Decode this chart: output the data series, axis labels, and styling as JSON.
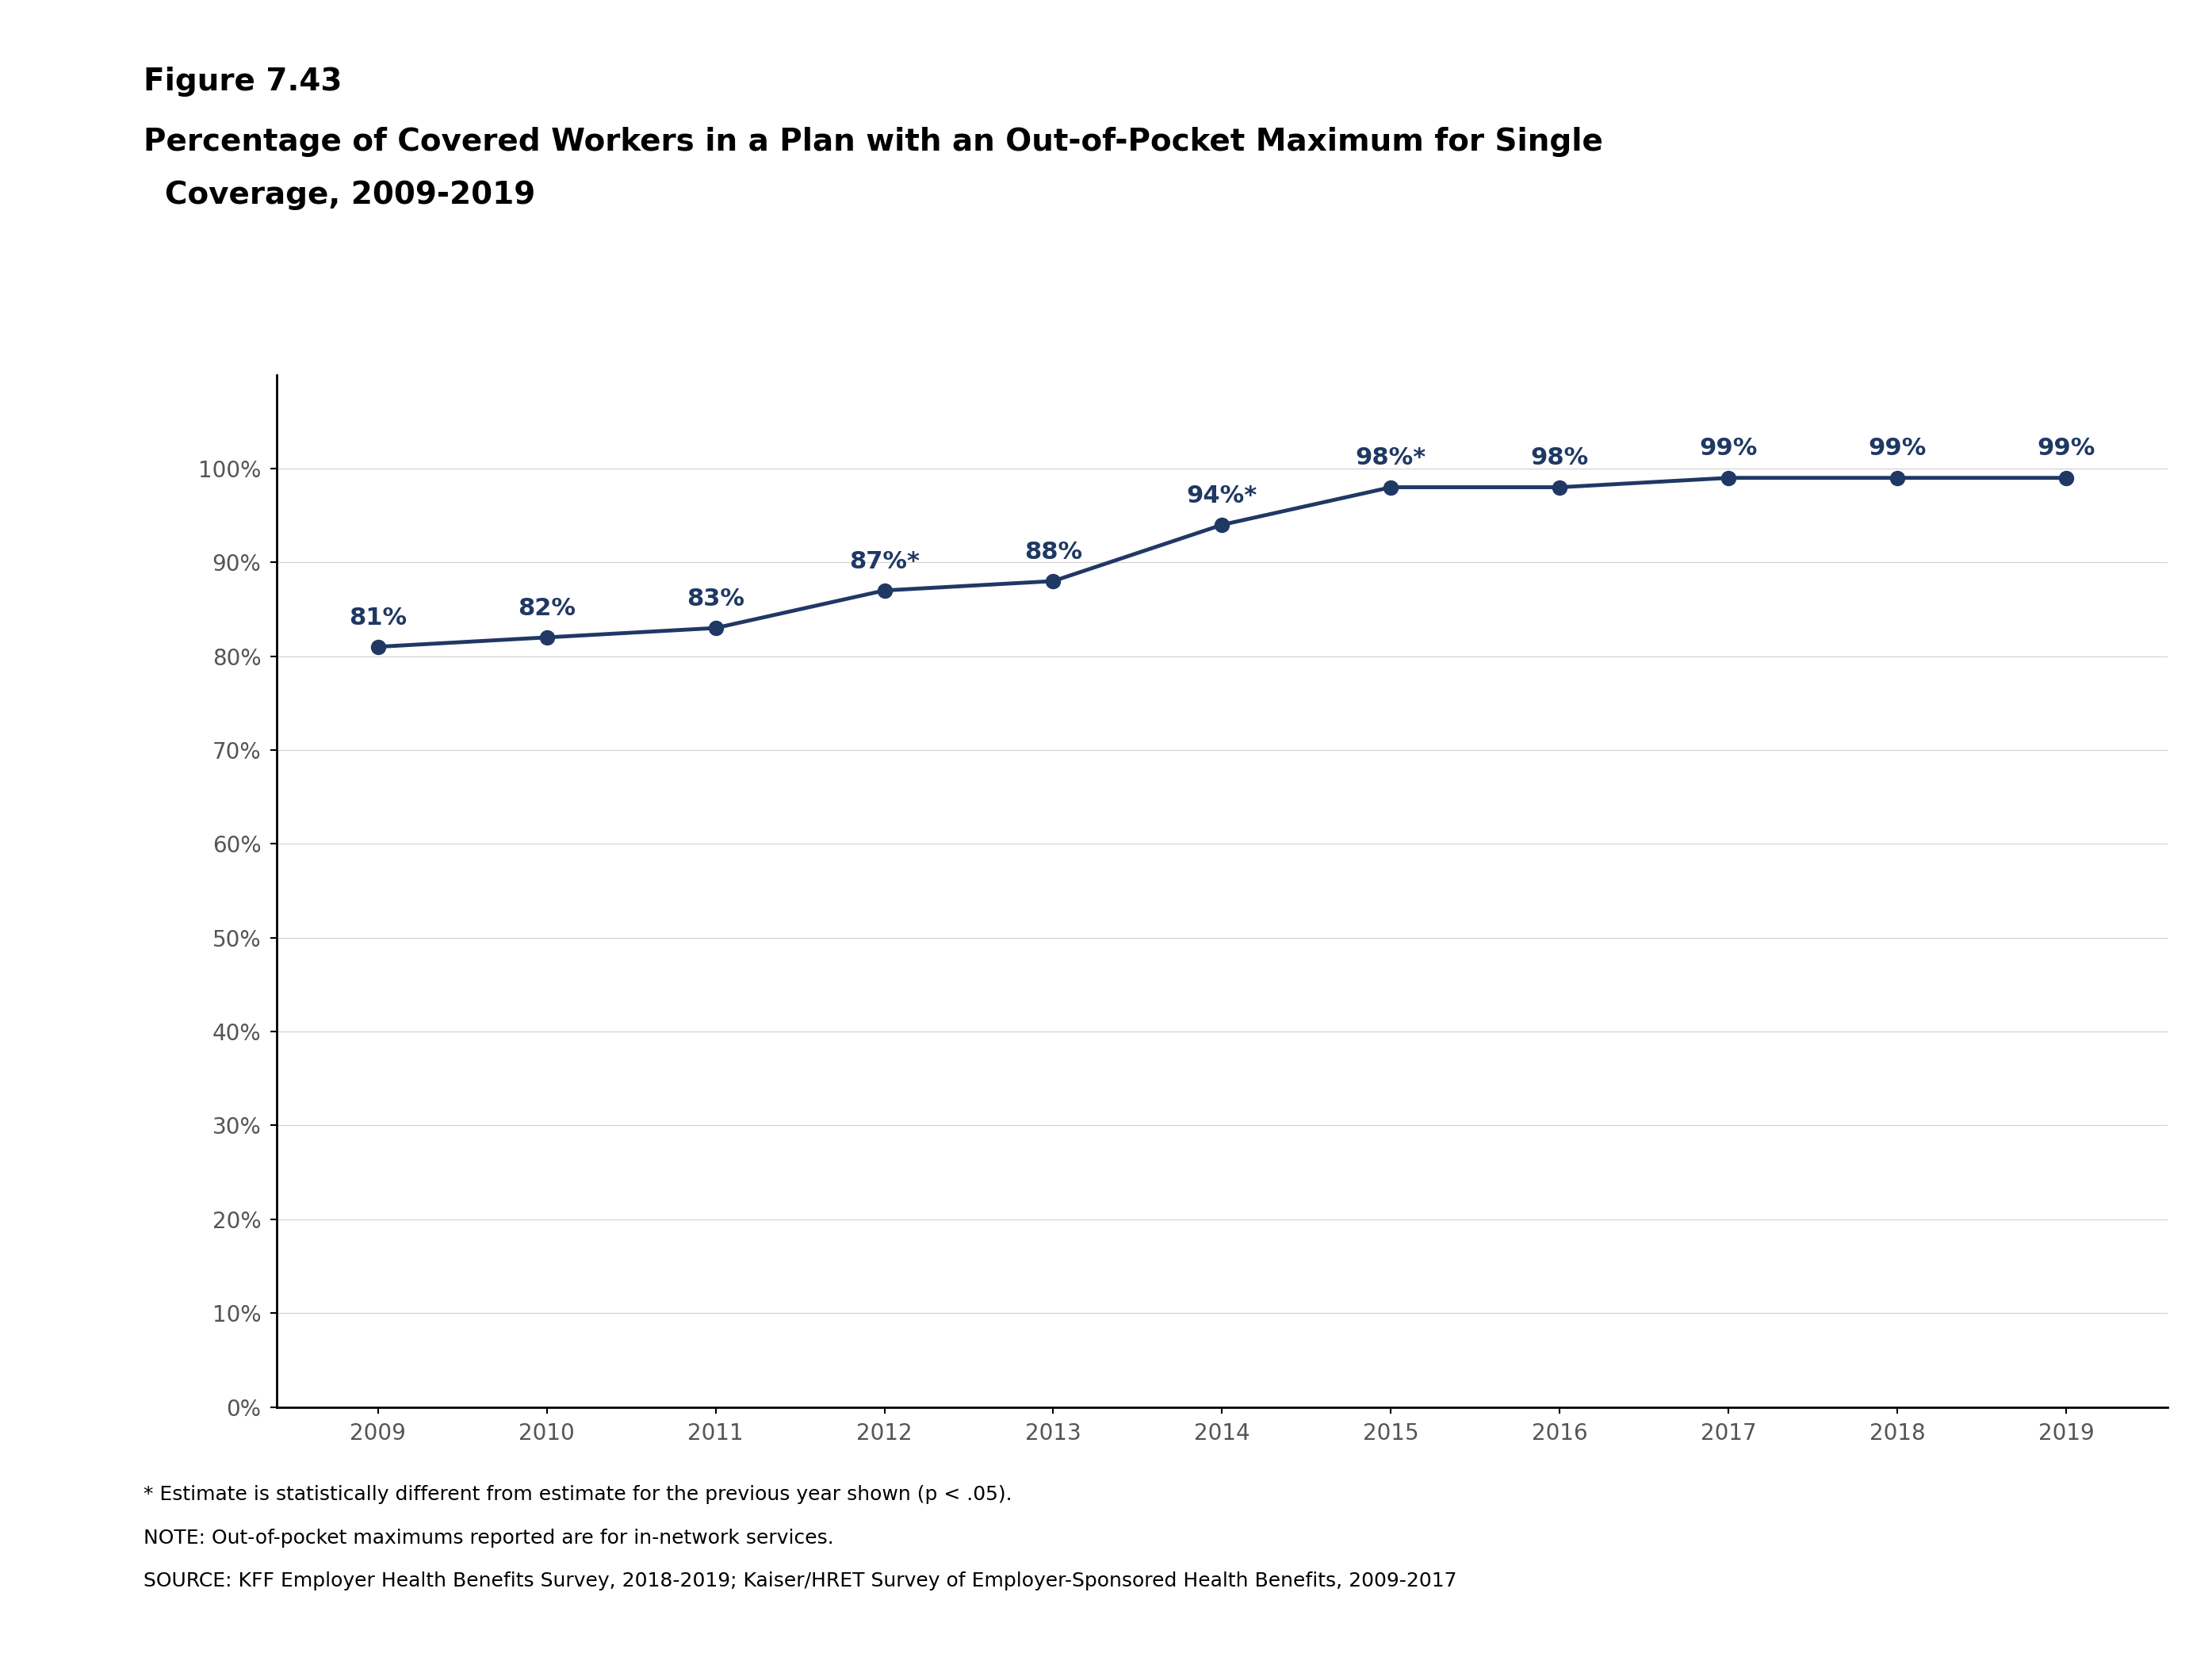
{
  "figure_label": "Figure 7.43",
  "title_line1": "Percentage of Covered Workers in a Plan with an Out-of-Pocket Maximum for Single",
  "title_line2": "  Coverage, 2009-2019",
  "years": [
    2009,
    2010,
    2011,
    2012,
    2013,
    2014,
    2015,
    2016,
    2017,
    2018,
    2019
  ],
  "values": [
    81,
    82,
    83,
    87,
    88,
    94,
    98,
    98,
    99,
    99,
    99
  ],
  "labels": [
    "81%",
    "82%",
    "83%",
    "87%*",
    "88%",
    "94%*",
    "98%*",
    "98%",
    "99%",
    "99%",
    "99%"
  ],
  "line_color": "#1f3864",
  "marker_color": "#1f3864",
  "background_color": "#ffffff",
  "ylim": [
    0,
    110
  ],
  "yticks": [
    0,
    10,
    20,
    30,
    40,
    50,
    60,
    70,
    80,
    90,
    100
  ],
  "ytick_labels": [
    "0%",
    "10%",
    "20%",
    "30%",
    "40%",
    "50%",
    "60%",
    "70%",
    "80%",
    "90%",
    "100%"
  ],
  "footnote1": "* Estimate is statistically different from estimate for the previous year shown (p < .05).",
  "footnote2": "NOTE: Out-of-pocket maximums reported are for in-network services.",
  "footnote3": "SOURCE: KFF Employer Health Benefits Survey, 2018-2019; Kaiser/HRET Survey of Employer-Sponsored Health Benefits, 2009-2017",
  "label_fontsize": 22,
  "tick_fontsize": 20,
  "title_fontsize": 28,
  "figure_label_fontsize": 28,
  "footnote_fontsize": 18,
  "line_width": 3.5,
  "marker_size": 13
}
